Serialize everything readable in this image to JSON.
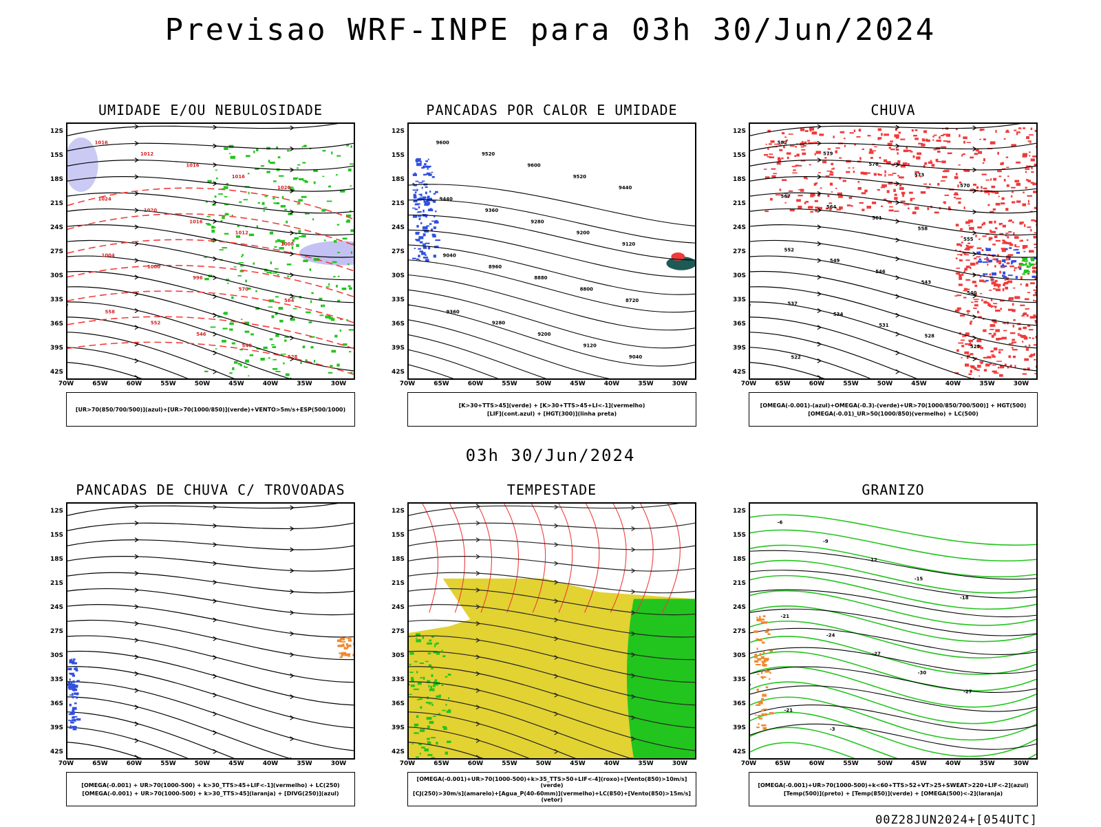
{
  "main_title": "Previsao WRF-INPE  para 03h 30/Jun/2024",
  "mid_title": "03h 30/Jun/2024",
  "footer_stamp": "00Z28JUN2024+[054UTC]",
  "axes": {
    "lat_labels": [
      "12S",
      "15S",
      "18S",
      "21S",
      "24S",
      "27S",
      "30S",
      "33S",
      "36S",
      "39S",
      "42S"
    ],
    "lon_labels": [
      "70W",
      "65W",
      "60W",
      "55W",
      "50W",
      "45W",
      "40W",
      "35W",
      "30W"
    ]
  },
  "colors": {
    "blue": "#3050e0",
    "green": "#22c41e",
    "red": "#f03a3a",
    "orange": "#f08a30",
    "yellow": "#e2d232",
    "purple": "#b5b3f0",
    "teal": "#1e5a55",
    "black": "#000000"
  },
  "panels": [
    {
      "title": "UMIDADE E/OU NEBULOSIDADE",
      "legend": [
        "[UR>70(850/700/500)](azul)+[UR>70(1000/850)](verde)+VENTO>5m/s+ESP(500/1000)"
      ],
      "contour_labels": [
        "1016",
        "1012",
        "1016",
        "1016",
        "1020",
        "1024",
        "1020",
        "1016",
        "1012",
        "1008",
        "1004",
        "1000",
        "996",
        "570",
        "564",
        "558",
        "552",
        "546",
        "540",
        "528"
      ]
    },
    {
      "title": "PANCADAS POR CALOR E UMIDADE",
      "legend": [
        "[K>30+TTS>45](verde) + [K>30+TTS>45+LI<-1](vermelho)",
        "[LIF](cont.azul) + [HGT(300)](linha preta)"
      ],
      "contour_labels": [
        "9600",
        "9520",
        "9600",
        "9520",
        "9440",
        "9440",
        "9360",
        "9280",
        "9200",
        "9120",
        "9040",
        "8960",
        "8880",
        "8800",
        "8720",
        "9360",
        "9280",
        "9200",
        "9120",
        "9040"
      ]
    },
    {
      "title": "CHUVA",
      "legend": [
        "[OMEGA(-0.001)-(azul)+OMEGA(-0.3)-(verde)+UR>70(1000/850/700/500)] + HGT(500)",
        "[OMEGA(-0.01)_UR>50(1000/850)(vermelho) + LC(500)"
      ],
      "contour_labels": [
        "582",
        "579",
        "576",
        "573",
        "570",
        "567",
        "564",
        "561",
        "558",
        "555",
        "552",
        "549",
        "546",
        "543",
        "540",
        "537",
        "534",
        "531",
        "528",
        "525",
        "522"
      ]
    },
    {
      "title": "PANCADAS DE CHUVA C/ TROVOADAS",
      "legend": [
        "[OMEGA(-0.001) + UR>70(1000-500) + k>30_TTS>45+LIF<-1](vermelho) + LC(250)",
        "[OMEGA(-0.001) + UR>70(1000-500) + k>30_TTS>45](laranja) + [DIVG(250)](azul)"
      ],
      "contour_labels": []
    },
    {
      "title": "TEMPESTADE",
      "legend": [
        "[OMEGA(-0.001)+UR>70(1000-500)+k>35_TTS>50+LIF<-4](roxo)+[Vento(850)>10m/s](verde)",
        "[CJ(250)>30m/s](amarelo)+[Agua_P(40-60mm)](vermelho)+LC(850)+[Vento(850)>15m/s](vetor)"
      ],
      "contour_labels": []
    },
    {
      "title": "GRANIZO",
      "legend": [
        "[OMEGA(-0.001)+UR>70(1000-500)+k<60+TTS>52+VT>25+SWEAT>220+LIF<-2](azul)",
        "[Temp(500)](preto) + [Temp(850)](verde) + [OMEGA(500)<-2](laranja)"
      ],
      "contour_labels": [
        "-6",
        "-9",
        "-12",
        "-15",
        "-18",
        "-21",
        "-24",
        "-27",
        "-30",
        "-27",
        "-21",
        "-3"
      ]
    }
  ]
}
